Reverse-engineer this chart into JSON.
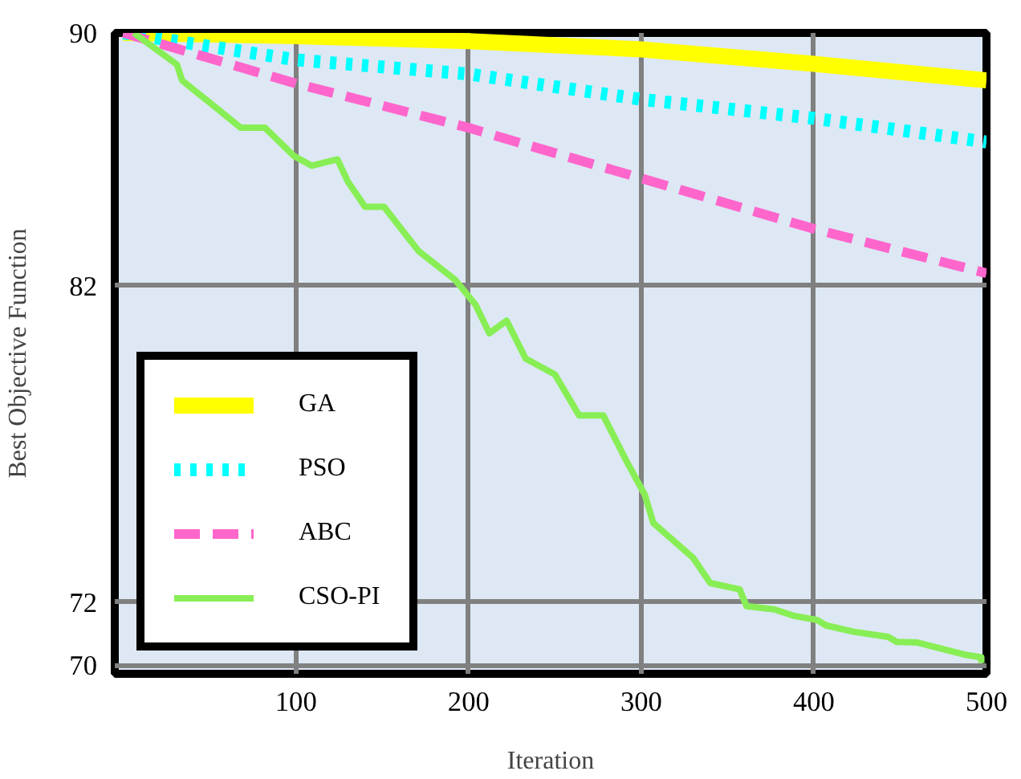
{
  "chart_data": {
    "type": "line",
    "xlabel": "Iteration",
    "ylabel": "Best Objective Function",
    "xlim": [
      -5,
      500
    ],
    "xticks": [
      100,
      200,
      300,
      400,
      500
    ],
    "ylim": [
      69.73,
      90
    ],
    "yticks": [
      90,
      82,
      72,
      70
    ],
    "grid": true,
    "legend": "bottom left",
    "series": [
      {
        "name": "GA",
        "color": "#ffff00",
        "line_style": "solid",
        "x": [
          0,
          100,
          200,
          300,
          400,
          500
        ],
        "values": [
          90,
          89.9,
          89.74,
          89.48,
          89.02,
          88.5
        ]
      },
      {
        "name": "PSO",
        "color": "#00ffff",
        "line_style": "dotted",
        "x": [
          0,
          100,
          200,
          300,
          400,
          500
        ],
        "values": [
          90,
          89.15,
          88.7,
          87.9,
          87.3,
          86.55
        ]
      },
      {
        "name": "ABC",
        "color": "#ff66cc",
        "line_style": "dashed",
        "x": [
          0,
          100,
          200,
          300,
          400,
          500
        ],
        "values": [
          90,
          88.4,
          87.0,
          85.4,
          83.8,
          82.4
        ]
      },
      {
        "name": "CSO-PI",
        "color": "#88ee55",
        "line_style": "solid",
        "x": [
          6,
          31,
          34,
          68,
          82,
          99,
          109,
          124,
          130,
          140,
          151,
          171,
          192,
          204,
          212,
          222,
          233,
          250,
          264,
          278,
          292,
          302,
          307,
          330,
          340,
          357,
          361,
          377,
          388,
          402,
          407,
          423,
          443,
          448,
          460,
          487,
          497,
          497
        ],
        "values": [
          90,
          89.0,
          88.5,
          87.0,
          87.0,
          86.1,
          85.8,
          86.0,
          85.3,
          84.5,
          84.5,
          83.1,
          82.2,
          81.4,
          80.5,
          80.9,
          79.7,
          79.2,
          77.9,
          77.9,
          76.4,
          75.4,
          74.5,
          73.4,
          72.6,
          72.4,
          71.87,
          71.77,
          71.57,
          71.43,
          71.26,
          71.06,
          70.9,
          70.74,
          70.72,
          70.34,
          70.25,
          70.07
        ]
      }
    ]
  }
}
